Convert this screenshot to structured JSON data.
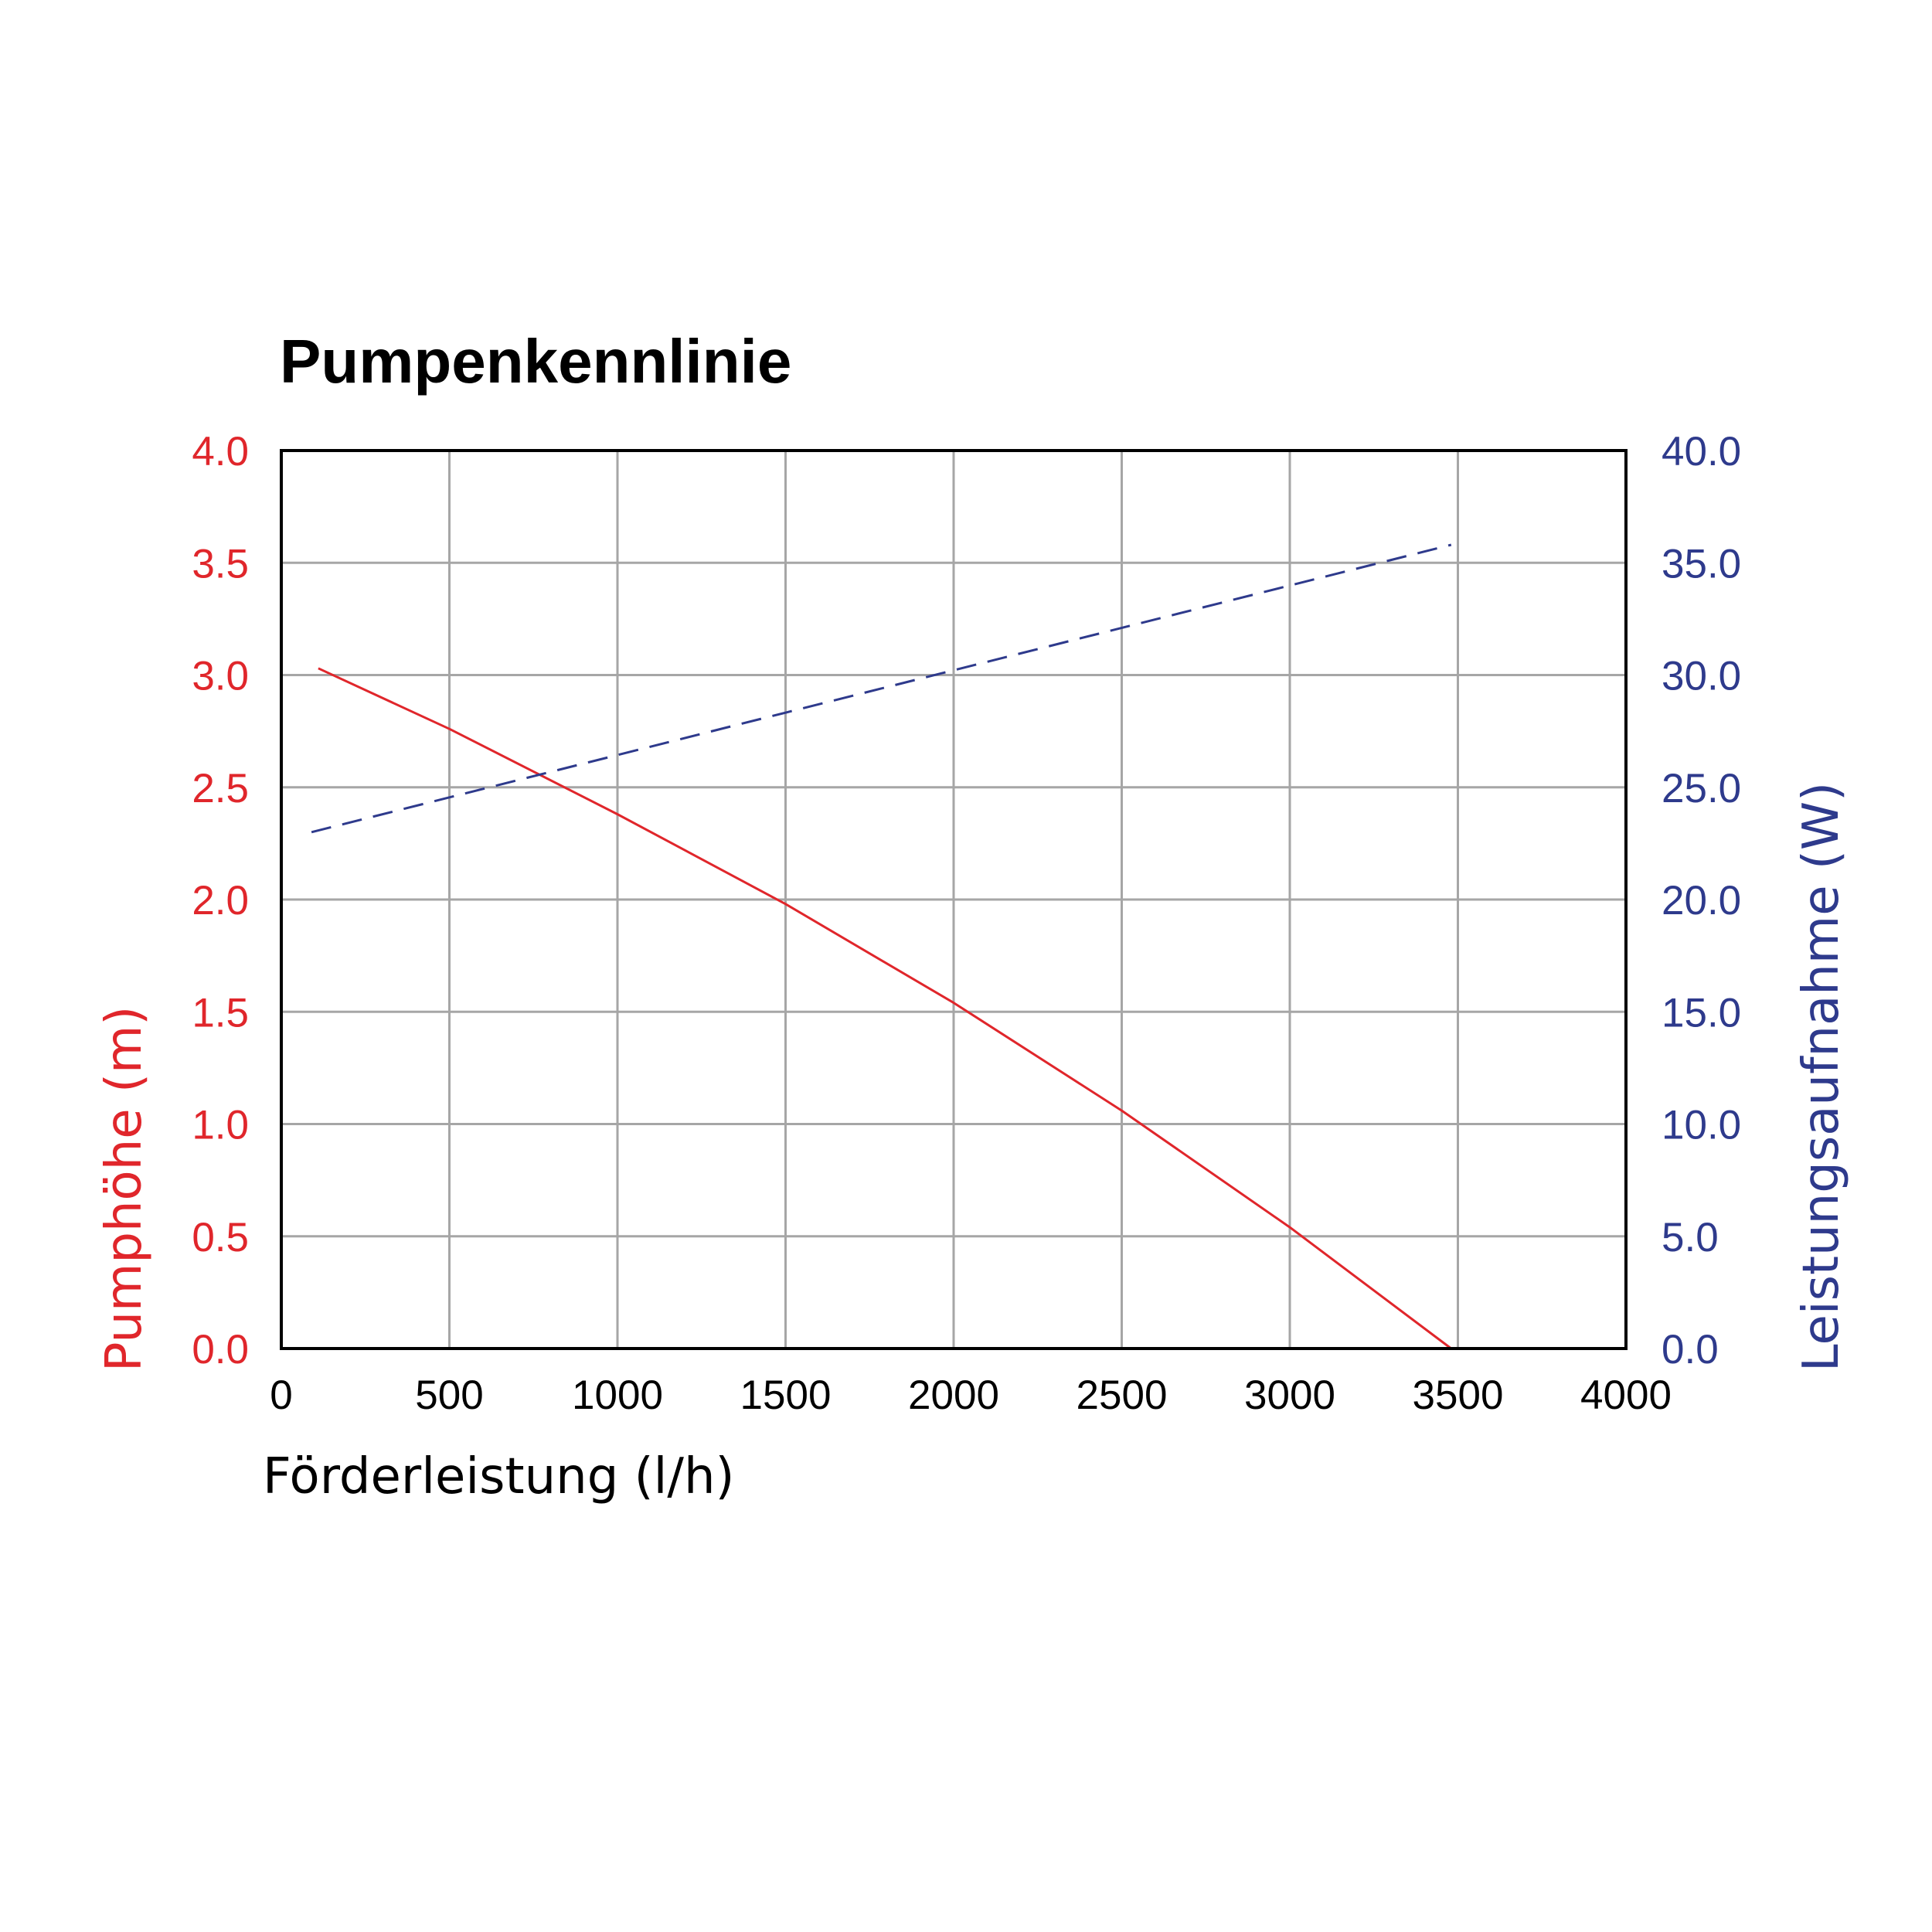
{
  "chart_data": {
    "type": "line",
    "title": "Pumpenkennlinie",
    "xlabel": "Förderleistung (l/h)",
    "ylabel_left": "Pumphöhe (m)",
    "ylabel_right": "Leistungsaufnahme (W)",
    "xlim": [
      0,
      4000
    ],
    "ylim_left": [
      0,
      4
    ],
    "ylim_right": [
      0,
      40
    ],
    "x_ticks": [
      "0",
      "500",
      "1000",
      "1500",
      "2000",
      "2500",
      "3000",
      "3500",
      "4000"
    ],
    "y_left_ticks": [
      "0.0",
      "0.5",
      "1.0",
      "1.5",
      "2.0",
      "2.5",
      "3.0",
      "3.5",
      "4.0"
    ],
    "y_right_ticks": [
      "0.0",
      "5.0",
      "10.0",
      "15.0",
      "20.0",
      "25.0",
      "30.0",
      "35.0",
      "40.0"
    ],
    "grid": true,
    "colors": {
      "head": "#e0262b",
      "power": "#2e3a8c",
      "left_axis": "#e0262b",
      "right_axis": "#2e3a8c",
      "grid": "#a6a6a6",
      "frame": "#000000"
    },
    "series": [
      {
        "axis": "left",
        "style": "solid",
        "x": [
          110,
          500,
          1000,
          1500,
          2000,
          2500,
          3000,
          3480
        ],
        "y": [
          3.03,
          2.76,
          2.38,
          1.98,
          1.54,
          1.06,
          0.54,
          0.0
        ]
      },
      {
        "axis": "right",
        "style": "dashed",
        "x": [
          90,
          3480
        ],
        "y": [
          23.0,
          35.8
        ]
      }
    ]
  }
}
